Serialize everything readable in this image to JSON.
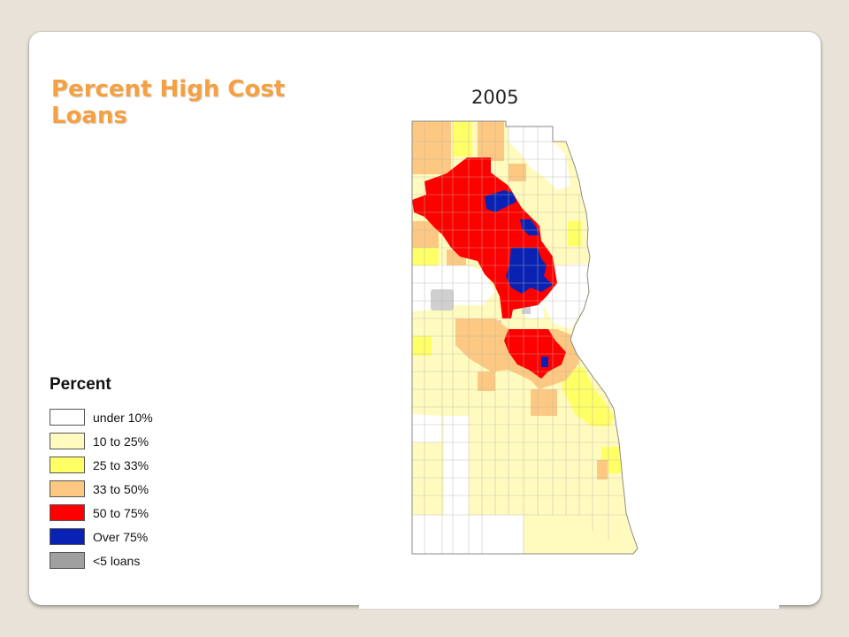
{
  "slide": {
    "title": "Percent High Cost Loans",
    "map_year": "2005"
  },
  "legend": {
    "title": "Percent",
    "items": [
      {
        "label": "under 10%",
        "color": "#ffffff"
      },
      {
        "label": "10 to 25%",
        "color": "#fffbbf"
      },
      {
        "label": "25 to 33%",
        "color": "#ffff66"
      },
      {
        "label": "33 to 50%",
        "color": "#fdc982"
      },
      {
        "label": "50 to 75%",
        "color": "#ff0000"
      },
      {
        "label": "Over 75%",
        "color": "#0a22b4"
      },
      {
        "label": "<5 loans",
        "color": "#a0a0a0"
      }
    ]
  }
}
